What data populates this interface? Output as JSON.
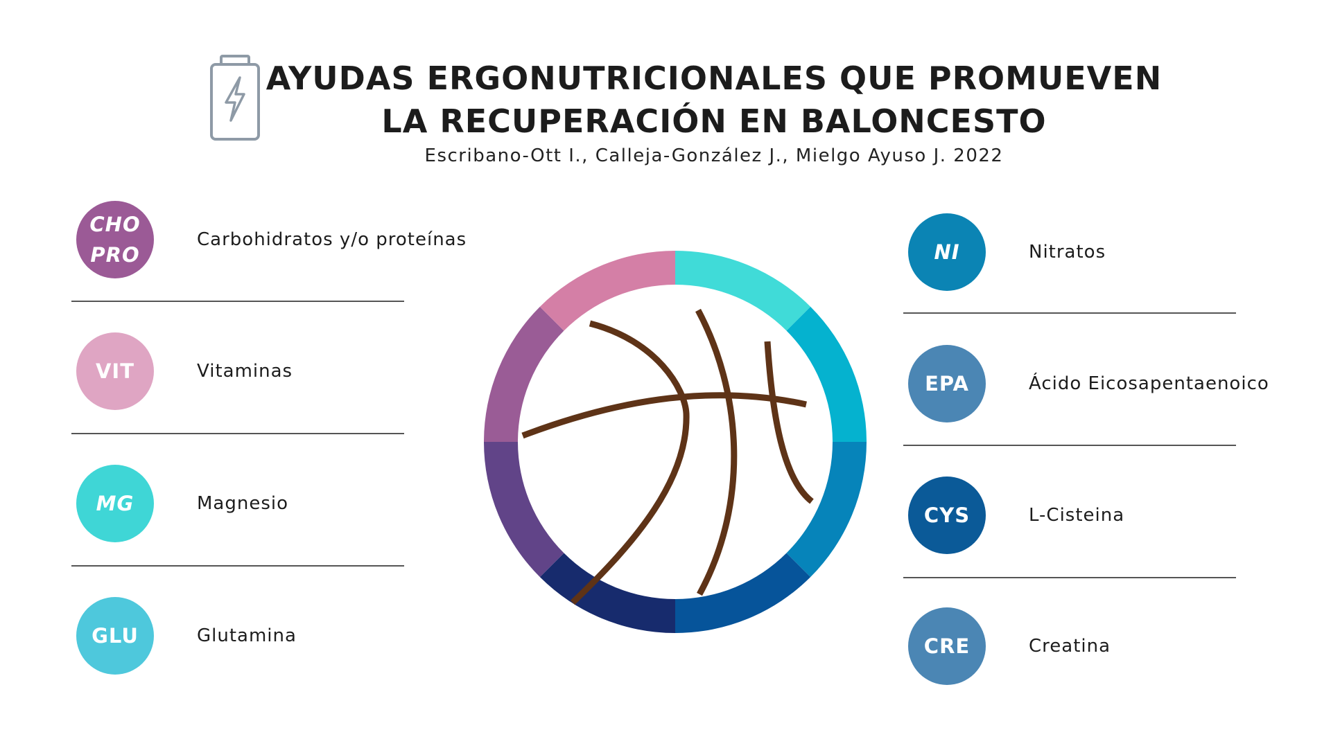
{
  "header": {
    "title_line1": "AYUDAS ERGONUTRICIONALES QUE PROMUEVEN",
    "title_line2": "LA RECUPERACIÓN EN BALONCESTO",
    "subtitle": "Escribano-Ott I., Calleja-González J., Mielgo Ayuso J. 2022",
    "icon": "battery-charging-icon"
  },
  "left_items": [
    {
      "abbr_lines": [
        "CHO",
        "PRO"
      ],
      "label": "Carbohidratos y/o proteínas",
      "color": "#9b5a96",
      "italic": true
    },
    {
      "abbr_lines": [
        "VIT"
      ],
      "label": "Vitaminas",
      "color": "#dfa5c3",
      "italic": false
    },
    {
      "abbr_lines": [
        "MG"
      ],
      "label": "Magnesio",
      "color": "#3fd6d6",
      "italic": true
    },
    {
      "abbr_lines": [
        "GLU"
      ],
      "label": "Glutamina",
      "color": "#4ec8dc",
      "italic": false
    }
  ],
  "right_items": [
    {
      "abbr_lines": [
        "NI"
      ],
      "label": "Nitratos",
      "color": "#0b84b4",
      "italic": true
    },
    {
      "abbr_lines": [
        "EPA"
      ],
      "label": "Ácido Eicosapentaenoico",
      "color": "#4b86b4",
      "italic": false
    },
    {
      "abbr_lines": [
        "CYS"
      ],
      "label": "L-Cisteina",
      "color": "#0b5a98",
      "italic": false
    },
    {
      "abbr_lines": [
        "CRE"
      ],
      "label": "Creatina",
      "color": "#4b86b4",
      "italic": false
    }
  ],
  "ring": {
    "icon": "basketball-icon",
    "segment_colors": [
      "#40dbd8",
      "#05b2cf",
      "#0684ba",
      "#06549a",
      "#172b6d",
      "#614488",
      "#9a5c96",
      "#d47fa6"
    ],
    "line_color": "#5e3317"
  }
}
